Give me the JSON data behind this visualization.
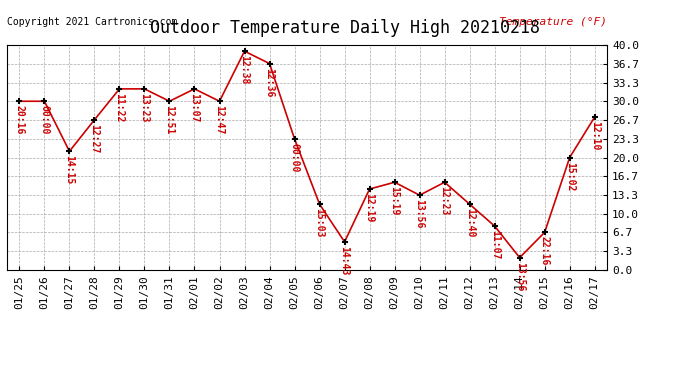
{
  "title": "Outdoor Temperature Daily High 20210218",
  "copyright": "Copyright 2021 Cartronics.com",
  "ylabel": "Temperature (°F)",
  "dates": [
    "01/25",
    "01/26",
    "01/27",
    "01/28",
    "01/29",
    "01/30",
    "01/31",
    "02/01",
    "02/02",
    "02/03",
    "02/04",
    "02/05",
    "02/06",
    "02/07",
    "02/08",
    "02/09",
    "02/10",
    "02/11",
    "02/12",
    "02/13",
    "02/14",
    "02/15",
    "02/16",
    "02/17"
  ],
  "temps": [
    30.0,
    30.0,
    21.1,
    26.7,
    32.2,
    32.2,
    30.0,
    32.2,
    30.0,
    38.9,
    36.7,
    23.3,
    11.7,
    5.0,
    14.4,
    15.6,
    13.3,
    15.6,
    11.7,
    7.8,
    2.2,
    6.7,
    20.0,
    27.2
  ],
  "times": [
    "20:16",
    "00:00",
    "14:15",
    "12:27",
    "11:22",
    "13:23",
    "12:51",
    "13:07",
    "12:47",
    "12:38",
    "12:36",
    "00:00",
    "15:03",
    "14:43",
    "12:19",
    "15:19",
    "13:56",
    "12:23",
    "12:40",
    "11:07",
    "13:56",
    "22:16",
    "15:02",
    "12:10"
  ],
  "ylim": [
    0.0,
    40.0
  ],
  "yticks": [
    0.0,
    3.3,
    6.7,
    10.0,
    13.3,
    16.7,
    20.0,
    23.3,
    26.7,
    30.0,
    33.3,
    36.7,
    40.0
  ],
  "line_color": "#cc0000",
  "marker_color": "#000000",
  "label_color": "#cc0000",
  "bg_color": "#ffffff",
  "grid_color": "#aaaaaa",
  "title_fontsize": 12,
  "axis_fontsize": 8,
  "label_fontsize": 7
}
